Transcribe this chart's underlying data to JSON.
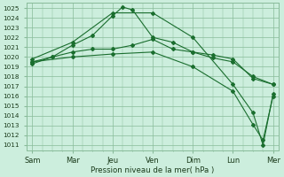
{
  "background_color": "#cceedd",
  "grid_color": "#88bb99",
  "line_color": "#1a6e2e",
  "xlabel_text": "Pression niveau de la mer( hPa )",
  "ylim": [
    1010.5,
    1025.5
  ],
  "yticks": [
    1011,
    1012,
    1013,
    1014,
    1015,
    1016,
    1017,
    1018,
    1019,
    1020,
    1021,
    1022,
    1023,
    1024,
    1025
  ],
  "xtick_labels": [
    "Sam",
    "Mar",
    "Jeu",
    "Ven",
    "Dim",
    "Lun",
    "Mer"
  ],
  "xtick_positions": [
    0,
    1,
    2,
    3,
    4,
    5,
    6
  ],
  "xlim": [
    -0.15,
    6.15
  ],
  "series": [
    {
      "x": [
        0,
        0.5,
        1,
        1.5,
        2,
        2.25,
        2.5,
        3,
        3.5,
        4,
        4.5,
        5,
        5.5,
        6
      ],
      "y": [
        1019.3,
        1020.0,
        1021.2,
        1022.2,
        1024.2,
        1025.1,
        1024.8,
        1022.0,
        1021.5,
        1020.5,
        1019.9,
        1019.5,
        1018.0,
        1017.2
      ]
    },
    {
      "x": [
        0,
        0.5,
        1,
        1.5,
        2,
        2.5,
        3,
        3.5,
        4,
        4.5,
        5,
        5.5,
        6
      ],
      "y": [
        1019.5,
        1020.0,
        1020.5,
        1020.8,
        1020.8,
        1021.2,
        1021.8,
        1020.8,
        1020.5,
        1020.2,
        1019.8,
        1017.8,
        1017.2
      ]
    },
    {
      "x": [
        0,
        1,
        2,
        3,
        4,
        5,
        5.5,
        5.75,
        6
      ],
      "y": [
        1019.8,
        1021.5,
        1024.5,
        1024.5,
        1022.0,
        1017.2,
        1014.3,
        1011.0,
        1016.2
      ]
    },
    {
      "x": [
        0,
        1,
        2,
        3,
        4,
        5,
        5.5,
        5.75,
        6
      ],
      "y": [
        1019.5,
        1020.0,
        1020.3,
        1020.5,
        1019.0,
        1016.5,
        1013.1,
        1011.5,
        1016.0
      ]
    }
  ]
}
